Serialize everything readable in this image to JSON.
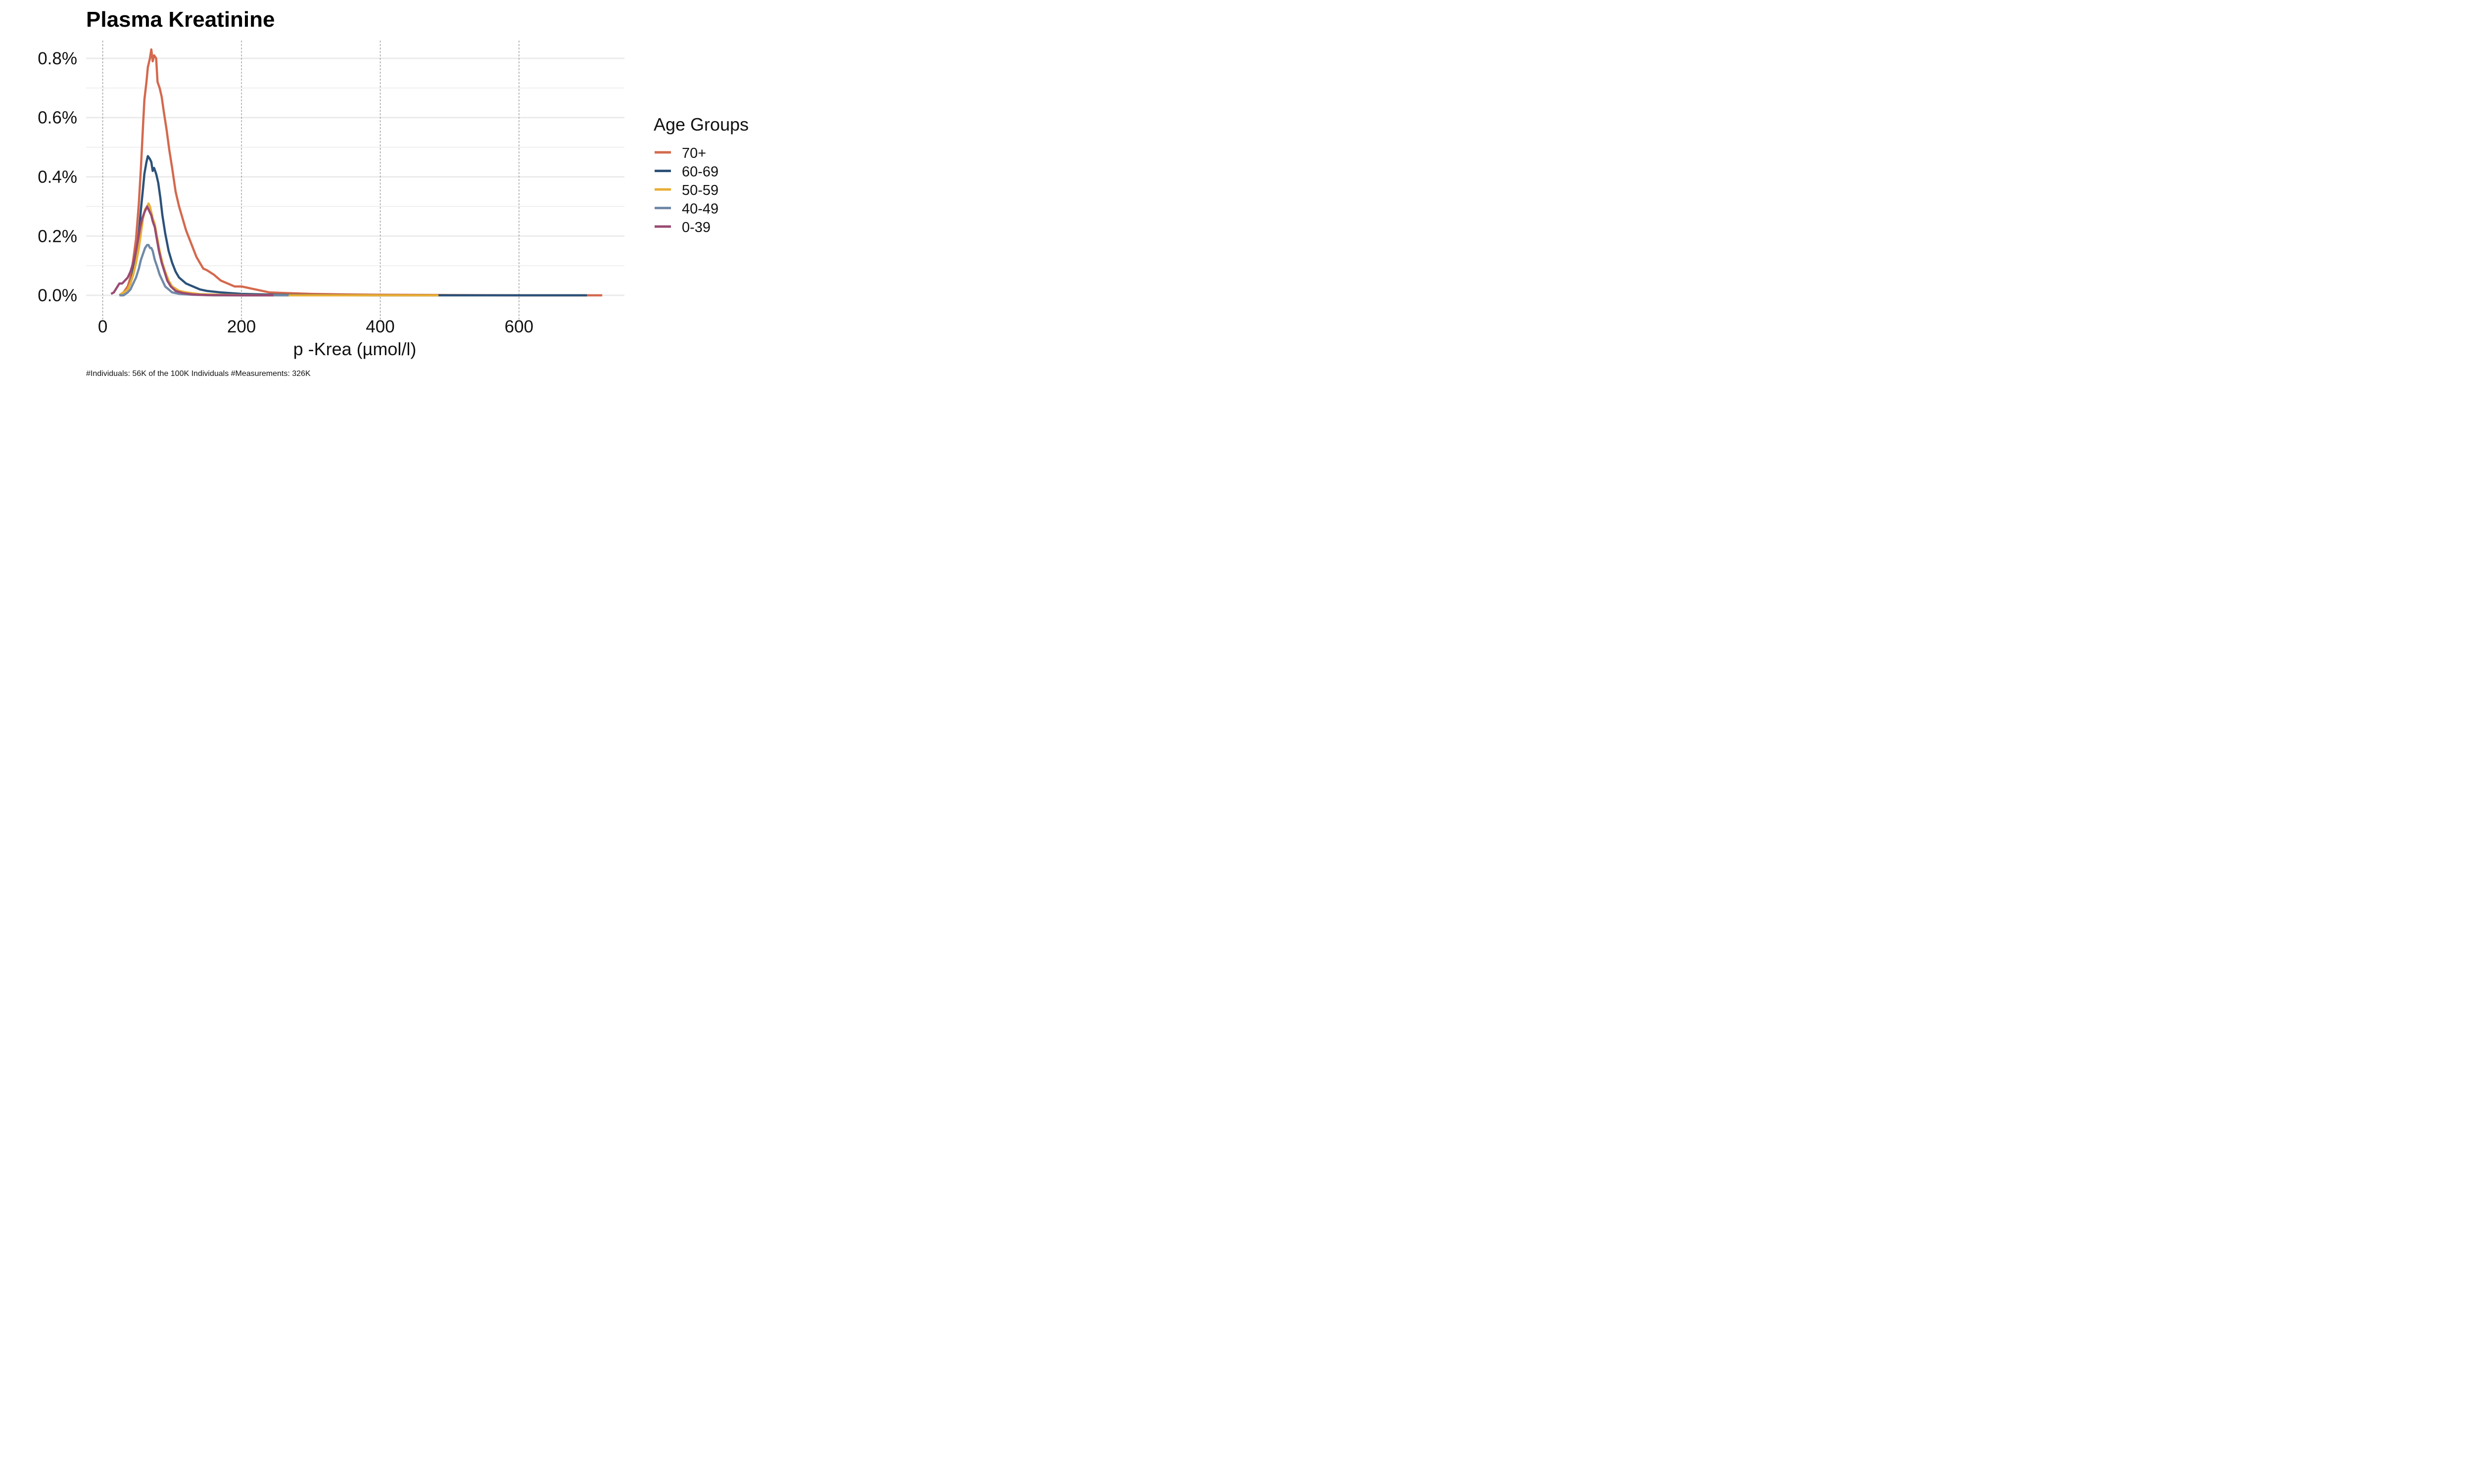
{
  "chart_data": {
    "type": "line",
    "title": "Plasma Kreatinine",
    "xlabel": "p -Krea (µmol/l)",
    "ylabel": "",
    "xlim": [
      -24,
      752
    ],
    "ylim": [
      -0.00045,
      0.0086
    ],
    "x_ticks": [
      0,
      200,
      400,
      600
    ],
    "x_tick_labels": [
      "0",
      "200",
      "400",
      "600"
    ],
    "y_ticks": [
      0.0,
      0.002,
      0.004,
      0.006,
      0.008
    ],
    "y_tick_labels": [
      "0.0%",
      "0.2%",
      "0.4%",
      "0.6%",
      "0.8%"
    ],
    "grid": true,
    "legend_title": "Age Groups",
    "legend_position": "right",
    "caption": "#Individuals: 56K of the 100K Individuals #Measurements: 326K",
    "series": [
      {
        "name": "70+",
        "color": "#d4694e",
        "points": [
          [
            24,
            0.0
          ],
          [
            30,
            0.0001
          ],
          [
            36,
            0.0003
          ],
          [
            40,
            0.0006
          ],
          [
            44,
            0.0012
          ],
          [
            48,
            0.0019
          ],
          [
            52,
            0.0031
          ],
          [
            55,
            0.0043
          ],
          [
            58,
            0.0057
          ],
          [
            60,
            0.0066
          ],
          [
            63,
            0.0072
          ],
          [
            65,
            0.0077
          ],
          [
            68,
            0.008
          ],
          [
            70,
            0.0083
          ],
          [
            72,
            0.0079
          ],
          [
            74,
            0.0081
          ],
          [
            77,
            0.008
          ],
          [
            79,
            0.0072
          ],
          [
            82,
            0.007
          ],
          [
            85,
            0.0067
          ],
          [
            88,
            0.0062
          ],
          [
            92,
            0.0056
          ],
          [
            96,
            0.0049
          ],
          [
            100,
            0.0043
          ],
          [
            105,
            0.0035
          ],
          [
            110,
            0.003
          ],
          [
            115,
            0.0026
          ],
          [
            120,
            0.0022
          ],
          [
            125,
            0.0019
          ],
          [
            130,
            0.0016
          ],
          [
            135,
            0.0013
          ],
          [
            140,
            0.0011
          ],
          [
            145,
            0.0009
          ],
          [
            150,
            0.00085
          ],
          [
            160,
            0.0007
          ],
          [
            170,
            0.0005
          ],
          [
            180,
            0.0004
          ],
          [
            190,
            0.0003
          ],
          [
            200,
            0.0003
          ],
          [
            220,
            0.0002
          ],
          [
            240,
            0.0001
          ],
          [
            260,
            8e-05
          ],
          [
            300,
            5e-05
          ],
          [
            350,
            3e-05
          ],
          [
            400,
            2e-05
          ],
          [
            500,
            1e-05
          ],
          [
            600,
            0.0
          ],
          [
            720,
            0.0
          ]
        ]
      },
      {
        "name": "60-69",
        "color": "#2c5279",
        "points": [
          [
            24,
            0.0
          ],
          [
            30,
            0.0001
          ],
          [
            36,
            0.0002
          ],
          [
            40,
            0.0004
          ],
          [
            44,
            0.0008
          ],
          [
            48,
            0.0013
          ],
          [
            52,
            0.0021
          ],
          [
            55,
            0.0029
          ],
          [
            58,
            0.0036
          ],
          [
            60,
            0.0041
          ],
          [
            63,
            0.0045
          ],
          [
            65,
            0.0047
          ],
          [
            68,
            0.0046
          ],
          [
            70,
            0.0045
          ],
          [
            72,
            0.0042
          ],
          [
            74,
            0.0043
          ],
          [
            77,
            0.0041
          ],
          [
            80,
            0.0038
          ],
          [
            83,
            0.0033
          ],
          [
            86,
            0.0027
          ],
          [
            90,
            0.0021
          ],
          [
            95,
            0.0015
          ],
          [
            100,
            0.0011
          ],
          [
            105,
            0.0008
          ],
          [
            110,
            0.0006
          ],
          [
            120,
            0.0004
          ],
          [
            130,
            0.0003
          ],
          [
            140,
            0.0002
          ],
          [
            150,
            0.00015
          ],
          [
            170,
            0.0001
          ],
          [
            200,
            5e-05
          ],
          [
            250,
            2e-05
          ],
          [
            300,
            1e-05
          ],
          [
            400,
            0.0
          ],
          [
            484,
            0.0
          ],
          [
            600,
            0.0
          ],
          [
            698,
            0.0
          ]
        ]
      },
      {
        "name": "50-59",
        "color": "#e8ae35",
        "points": [
          [
            24,
            0.0
          ],
          [
            30,
            0.0001
          ],
          [
            36,
            0.0002
          ],
          [
            40,
            0.0004
          ],
          [
            44,
            0.0007
          ],
          [
            48,
            0.0011
          ],
          [
            52,
            0.0016
          ],
          [
            55,
            0.0021
          ],
          [
            58,
            0.0026
          ],
          [
            61,
            0.0029
          ],
          [
            64,
            0.003
          ],
          [
            66,
            0.0031
          ],
          [
            68,
            0.003
          ],
          [
            70,
            0.0028
          ],
          [
            72,
            0.0026
          ],
          [
            75,
            0.0024
          ],
          [
            78,
            0.002
          ],
          [
            82,
            0.0015
          ],
          [
            86,
            0.0011
          ],
          [
            90,
            0.0008
          ],
          [
            95,
            0.0005
          ],
          [
            100,
            0.0003
          ],
          [
            110,
            0.00015
          ],
          [
            120,
            0.0001
          ],
          [
            140,
            4e-05
          ],
          [
            170,
            2e-05
          ],
          [
            200,
            1e-05
          ],
          [
            270,
            0.0
          ],
          [
            400,
            0.0
          ],
          [
            484,
            0.0
          ]
        ]
      },
      {
        "name": "40-49",
        "color": "#7089a8",
        "points": [
          [
            24,
            0.0
          ],
          [
            30,
            0.0
          ],
          [
            36,
            0.0001
          ],
          [
            40,
            0.0002
          ],
          [
            44,
            0.0004
          ],
          [
            48,
            0.0006
          ],
          [
            52,
            0.0009
          ],
          [
            55,
            0.0012
          ],
          [
            58,
            0.0014
          ],
          [
            61,
            0.0016
          ],
          [
            64,
            0.0017
          ],
          [
            66,
            0.0017
          ],
          [
            68,
            0.0016
          ],
          [
            70,
            0.0016
          ],
          [
            72,
            0.0015
          ],
          [
            75,
            0.0012
          ],
          [
            78,
            0.001
          ],
          [
            82,
            0.0007
          ],
          [
            86,
            0.0005
          ],
          [
            90,
            0.0003
          ],
          [
            95,
            0.0002
          ],
          [
            100,
            0.0001
          ],
          [
            110,
            5e-05
          ],
          [
            130,
            2e-05
          ],
          [
            160,
            0.0
          ],
          [
            200,
            0.0
          ],
          [
            268,
            0.0
          ]
        ]
      },
      {
        "name": "0-39",
        "color": "#9a4b73",
        "points": [
          [
            12,
            5e-05
          ],
          [
            16,
            0.0001
          ],
          [
            20,
            0.00025
          ],
          [
            24,
            0.0004
          ],
          [
            28,
            0.0004
          ],
          [
            32,
            0.0005
          ],
          [
            36,
            0.0006
          ],
          [
            40,
            0.0008
          ],
          [
            44,
            0.0011
          ],
          [
            48,
            0.0015
          ],
          [
            51,
            0.0019
          ],
          [
            54,
            0.0023
          ],
          [
            57,
            0.0026
          ],
          [
            60,
            0.0028
          ],
          [
            62,
            0.0029
          ],
          [
            64,
            0.003
          ],
          [
            66,
            0.0029
          ],
          [
            68,
            0.0028
          ],
          [
            70,
            0.0027
          ],
          [
            72,
            0.0025
          ],
          [
            75,
            0.0023
          ],
          [
            78,
            0.0019
          ],
          [
            81,
            0.0015
          ],
          [
            85,
            0.0011
          ],
          [
            89,
            0.0008
          ],
          [
            93,
            0.0005
          ],
          [
            98,
            0.0003
          ],
          [
            105,
            0.00015
          ],
          [
            115,
            8e-05
          ],
          [
            130,
            3e-05
          ],
          [
            150,
            1e-05
          ],
          [
            200,
            0.0
          ],
          [
            246,
            0.0
          ]
        ]
      }
    ]
  }
}
